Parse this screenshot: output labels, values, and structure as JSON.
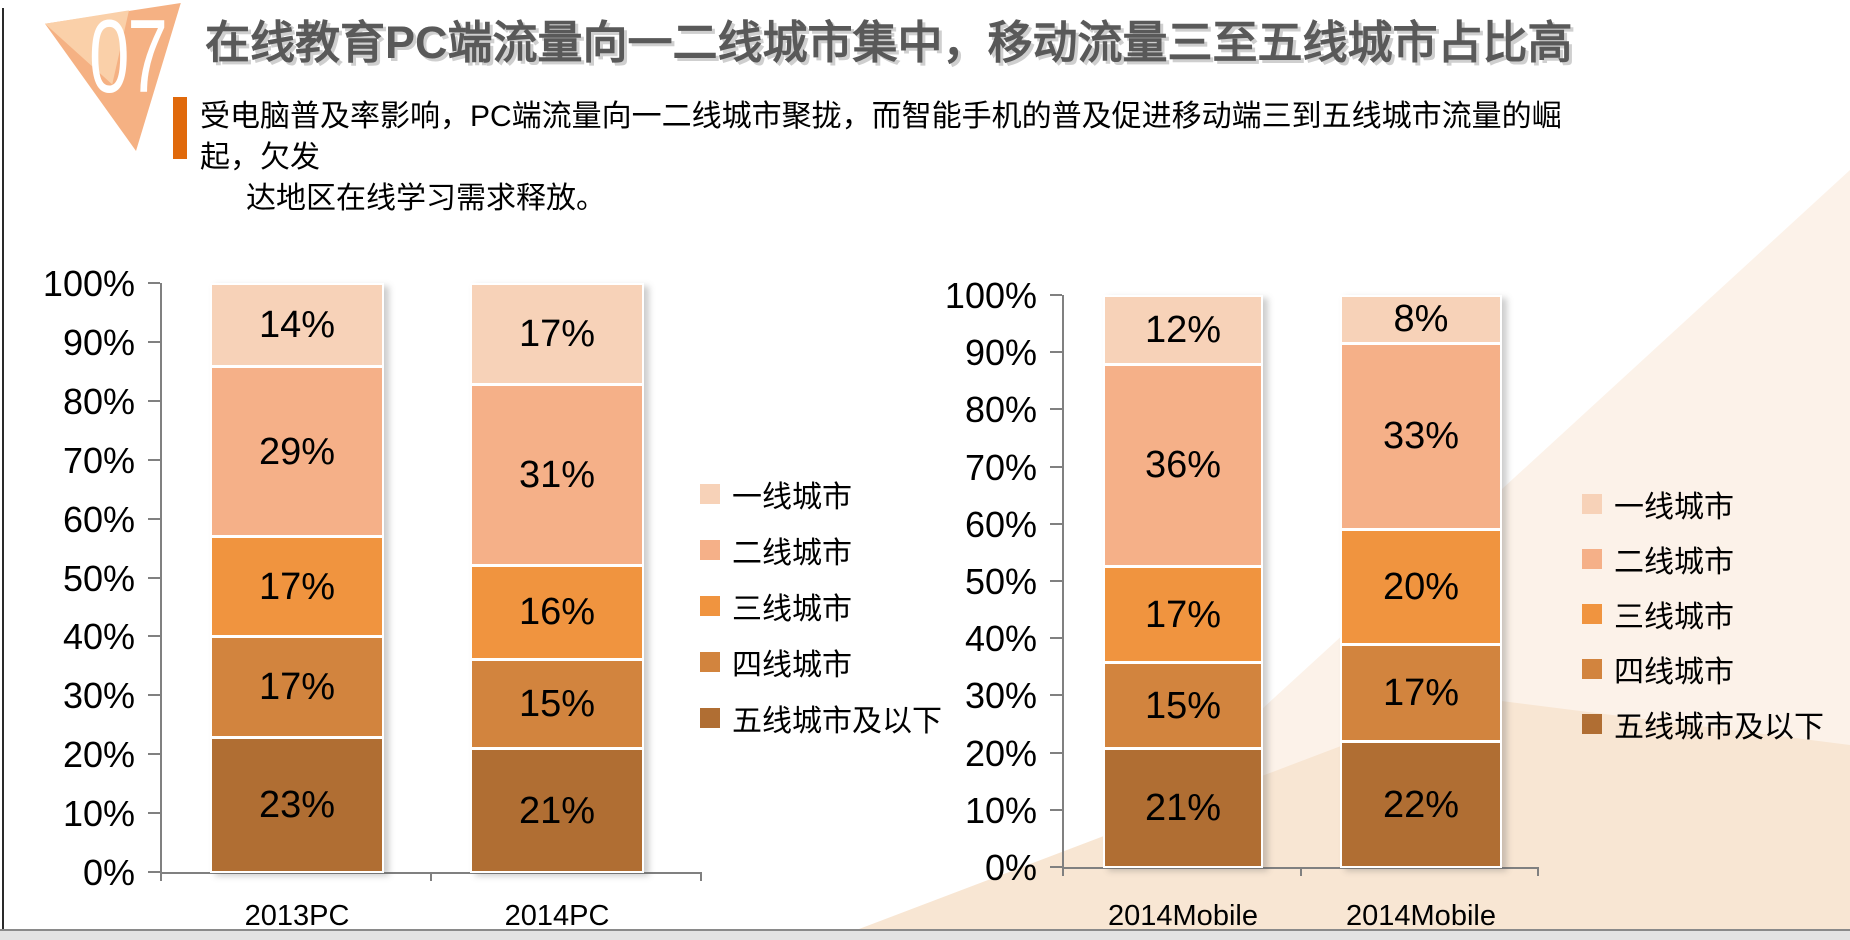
{
  "slide": {
    "number": "07",
    "title": "在线教育PC端流量向一二线城市集中，移动流量三至五线城市占比高",
    "subtitle_line1": "受电脑普及率影响，PC端流量向一二线城市聚拢，而智能手机的普及促进移动端三到五线城市流量的崛起，欠发",
    "subtitle_line2": "达地区在线学习需求释放。"
  },
  "colors": {
    "title_text": "#595959",
    "accent_bar": "#E0690B",
    "marker_main": "#F5B183",
    "marker_facet": "#FAD0A9",
    "axis": "#808080",
    "series": [
      "#F7D2B8",
      "#F5B088",
      "#F0943F",
      "#D2843E",
      "#B06E33"
    ],
    "bg_triangle_light": "#FCF2E9",
    "bg_triangle_band": "#F8E6D3"
  },
  "legend_labels": [
    "一线城市",
    "二线城市",
    "三线城市",
    "四线城市",
    "五线城市及以下"
  ],
  "y_axis_ticks": [
    "100%",
    "90%",
    "80%",
    "70%",
    "60%",
    "50%",
    "40%",
    "30%",
    "20%",
    "10%",
    "0%"
  ],
  "chart_data": [
    {
      "type": "bar",
      "stacked": true,
      "title": "",
      "categories": [
        "2013PC",
        "2014PC"
      ],
      "series": [
        {
          "name": "一线城市",
          "values": [
            14,
            17
          ]
        },
        {
          "name": "二线城市",
          "values": [
            29,
            31
          ]
        },
        {
          "name": "三线城市",
          "values": [
            17,
            16
          ]
        },
        {
          "name": "四线城市",
          "values": [
            17,
            15
          ]
        },
        {
          "name": "五线城市及以下",
          "values": [
            23,
            21
          ]
        }
      ],
      "value_suffix": "%",
      "ylim": [
        0,
        100
      ],
      "grid": false,
      "legend_position": "right"
    },
    {
      "type": "bar",
      "stacked": true,
      "title": "",
      "categories": [
        "2014Mobile",
        "2014Mobile"
      ],
      "series": [
        {
          "name": "一线城市",
          "values": [
            12,
            8
          ]
        },
        {
          "name": "二线城市",
          "values": [
            36,
            33
          ]
        },
        {
          "name": "三线城市",
          "values": [
            17,
            20
          ]
        },
        {
          "name": "四线城市",
          "values": [
            15,
            17
          ]
        },
        {
          "name": "五线城市及以下",
          "values": [
            21,
            22
          ]
        }
      ],
      "value_suffix": "%",
      "ylim": [
        0,
        100
      ],
      "grid": false,
      "legend_position": "right"
    }
  ]
}
